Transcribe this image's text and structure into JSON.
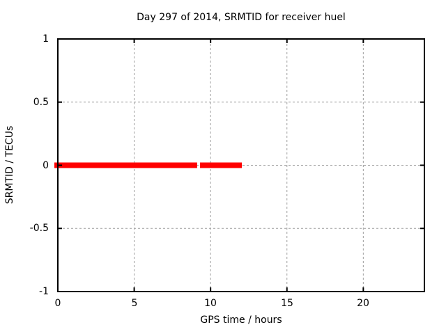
{
  "chart_data": {
    "type": "line",
    "title": "Day 297 of 2014, SRMTID for receiver huel",
    "xlabel": "GPS time / hours",
    "ylabel": "SRMTID / TECUs",
    "xlim": [
      0,
      24
    ],
    "ylim": [
      -1,
      1
    ],
    "x_ticks": {
      "values": [
        0,
        5,
        10,
        15,
        20
      ],
      "labels": [
        "0",
        "5",
        "10",
        "15",
        "20"
      ]
    },
    "y_ticks": {
      "values": [
        1,
        0.5,
        0,
        -0.5,
        -1
      ],
      "labels": [
        "1",
        "0.5",
        "0",
        "-0.5",
        "-1"
      ]
    },
    "grid": "on",
    "grid_style": "dashed",
    "legend": "none",
    "colors": {
      "background": "#ffffff",
      "border": "#000000",
      "grid": "#9e9e9e",
      "text": "#000000",
      "series": "#ff0000"
    },
    "series": [
      {
        "name": "SRMTID",
        "color": "#ff0000",
        "style": "thick-horizontal-segments",
        "y": 0,
        "segments_x_hours": [
          [
            0,
            9.12
          ],
          [
            9.31,
            12.05
          ]
        ]
      }
    ]
  }
}
